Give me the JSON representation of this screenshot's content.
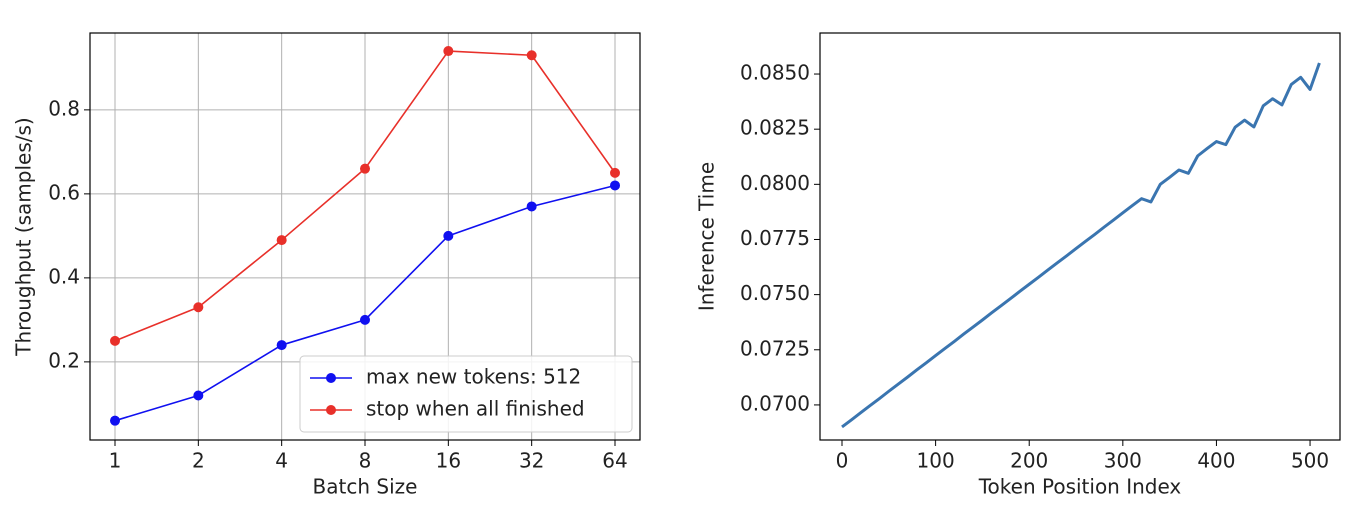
{
  "chart_data": [
    {
      "type": "line",
      "xlabel": "Batch Size",
      "ylabel": "Throughput (samples/s)",
      "categories": [
        "1",
        "2",
        "4",
        "8",
        "16",
        "32",
        "64"
      ],
      "series": [
        {
          "name": "max new tokens: 512",
          "color": "#1010f0",
          "values": [
            0.06,
            0.12,
            0.24,
            0.3,
            0.5,
            0.57,
            0.62
          ]
        },
        {
          "name": "stop when all finished",
          "color": "#e8302a",
          "values": [
            0.25,
            0.33,
            0.49,
            0.66,
            0.94,
            0.93,
            0.65
          ]
        }
      ],
      "ylim": [
        0.014,
        0.983
      ],
      "yticks": [
        0.2,
        0.4,
        0.6,
        0.8
      ],
      "grid": true,
      "legend": "lower right"
    },
    {
      "type": "line",
      "xlabel": "Token Position Index",
      "ylabel": "Inference Time",
      "x": [
        0,
        10,
        20,
        30,
        40,
        50,
        60,
        70,
        80,
        90,
        100,
        110,
        120,
        130,
        140,
        150,
        160,
        170,
        180,
        190,
        200,
        210,
        220,
        230,
        240,
        250,
        260,
        270,
        280,
        290,
        300,
        310,
        320,
        330,
        340,
        350,
        360,
        370,
        380,
        390,
        400,
        410,
        420,
        430,
        440,
        450,
        460,
        470,
        480,
        490,
        500,
        510
      ],
      "series": [
        {
          "name": null,
          "color": "#3a75b0",
          "values": [
            0.069,
            0.06932,
            0.06965,
            0.06997,
            0.07029,
            0.07062,
            0.07094,
            0.07126,
            0.07159,
            0.07191,
            0.07224,
            0.07256,
            0.07288,
            0.07321,
            0.07353,
            0.07385,
            0.07418,
            0.0745,
            0.07482,
            0.07515,
            0.07547,
            0.07579,
            0.07612,
            0.07644,
            0.07676,
            0.07709,
            0.07741,
            0.07773,
            0.07806,
            0.07838,
            0.07871,
            0.07903,
            0.07935,
            0.0792,
            0.08,
            0.08032,
            0.08065,
            0.0805,
            0.08129,
            0.08162,
            0.08194,
            0.0818,
            0.08259,
            0.08291,
            0.0826,
            0.08356,
            0.08388,
            0.0836,
            0.08453,
            0.08485,
            0.0843,
            0.0855
          ]
        }
      ],
      "xlim": [
        -23.5,
        532
      ],
      "xticks": [
        0,
        100,
        200,
        300,
        400,
        500
      ],
      "ylim": [
        0.06841,
        0.08686
      ],
      "yticks": [
        {
          "value": 0.07,
          "label": "0.0700"
        },
        0.0725,
        {
          "value": 0.075,
          "label": "0.0750"
        },
        0.0775,
        {
          "value": 0.08,
          "label": "0.0800"
        },
        0.0825,
        {
          "value": 0.085,
          "label": "0.0850"
        }
      ],
      "grid": false
    }
  ]
}
